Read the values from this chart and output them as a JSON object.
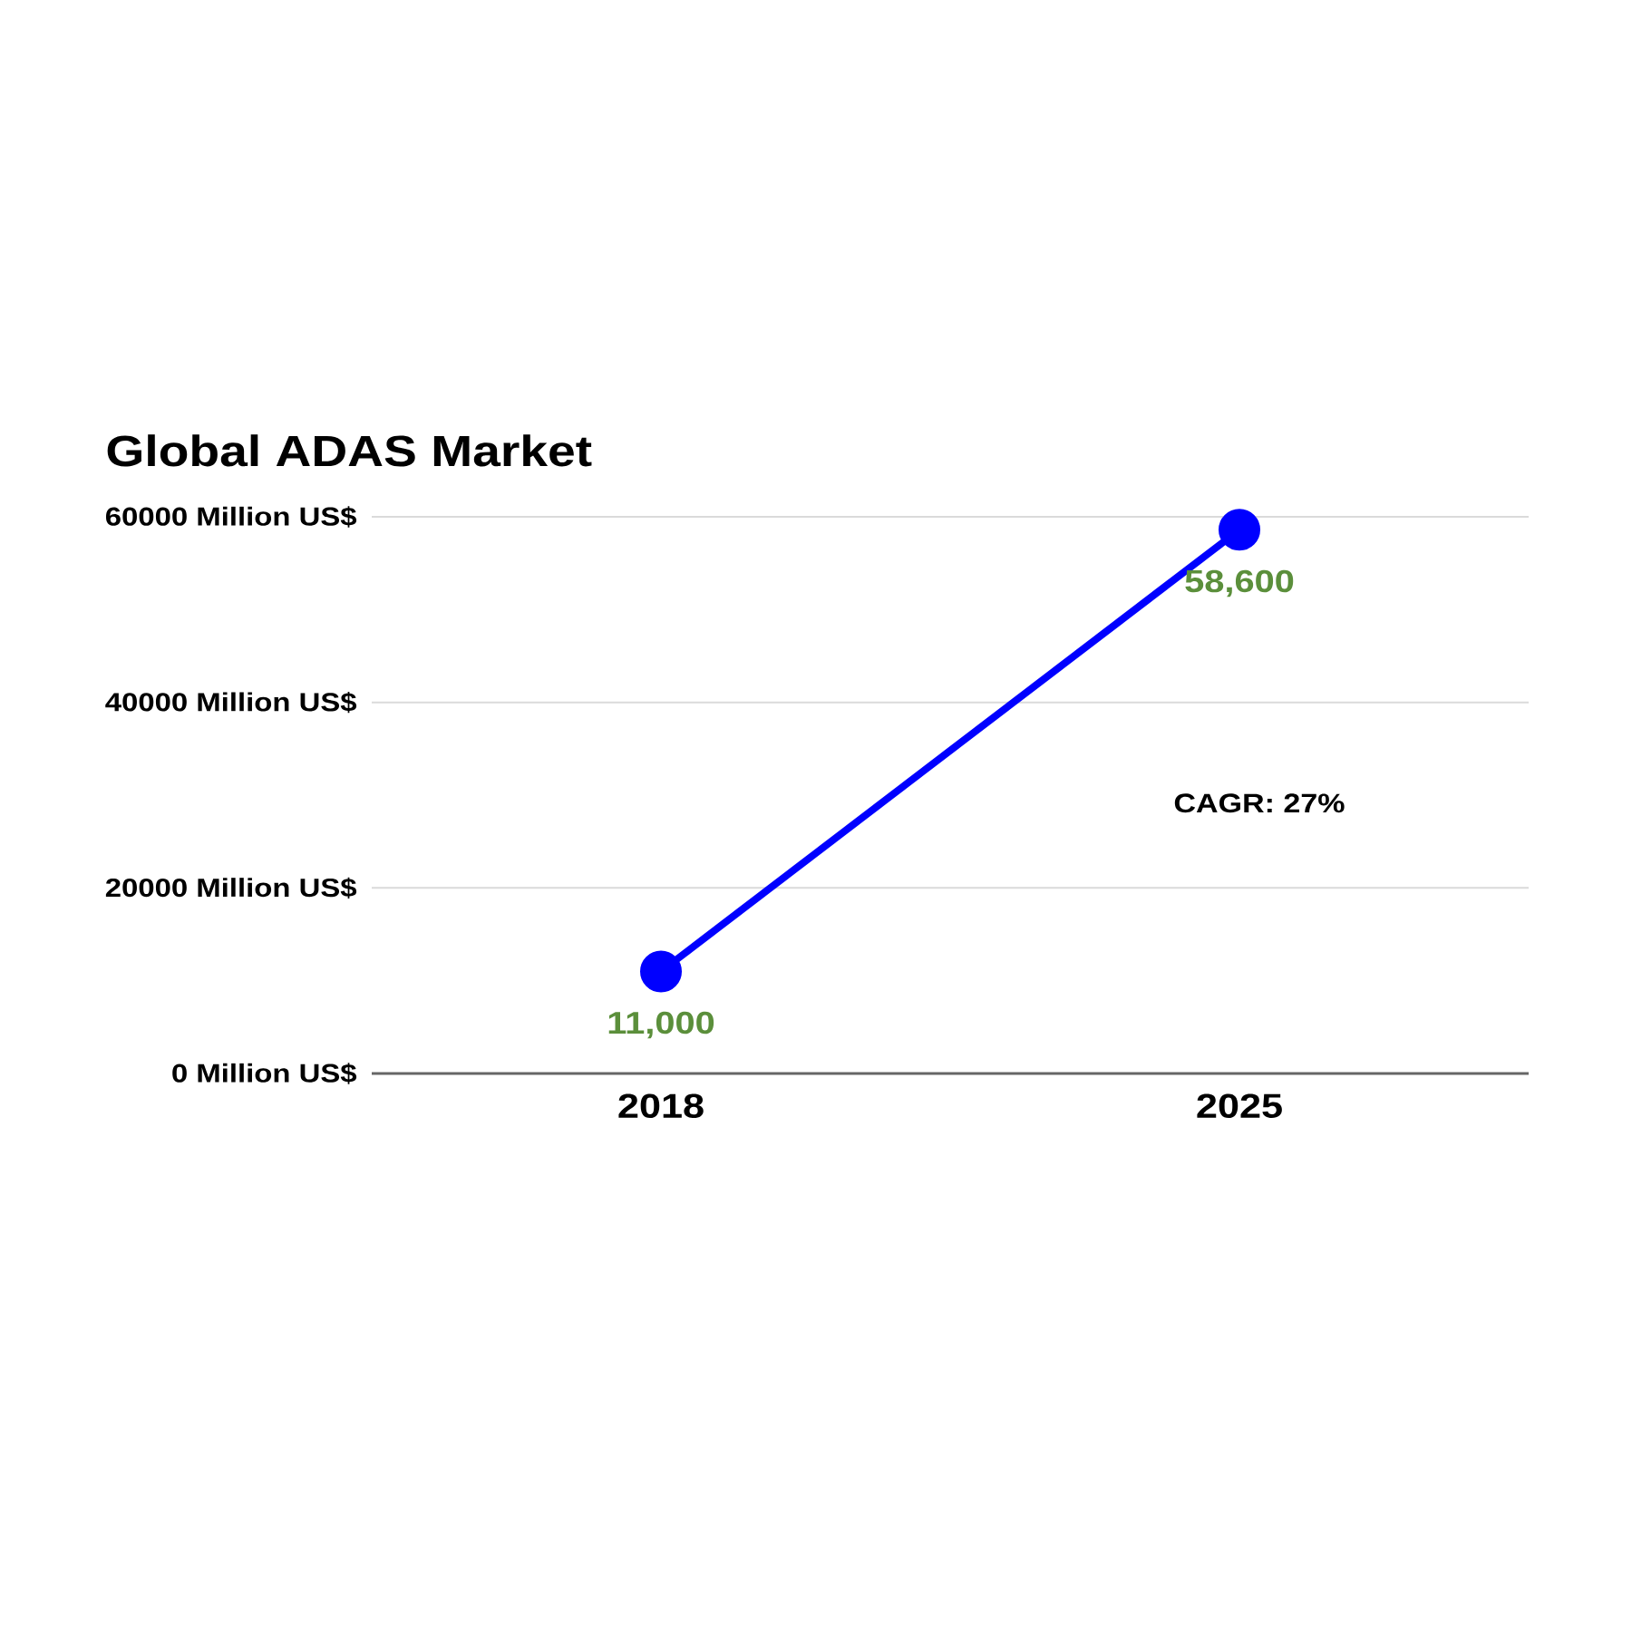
{
  "chart_data": {
    "type": "line",
    "title": "Global ADAS Market",
    "categories": [
      "2018",
      "2025"
    ],
    "values": [
      11000,
      58600
    ],
    "color": "#0000ff",
    "value_labels": [
      "11,000",
      "58,600"
    ],
    "ylim": [
      0,
      60000
    ],
    "yticks": [
      {
        "value": 0,
        "label": "0 Million US$"
      },
      {
        "value": 20000,
        "label": "20000 Million US$"
      },
      {
        "value": 40000,
        "label": "40000 Million US$"
      },
      {
        "value": 60000,
        "label": "60000 Million US$"
      }
    ],
    "grid": "y",
    "marker": "circle",
    "line_style": "solid",
    "annotations": [
      "CAGR: 27%"
    ]
  }
}
